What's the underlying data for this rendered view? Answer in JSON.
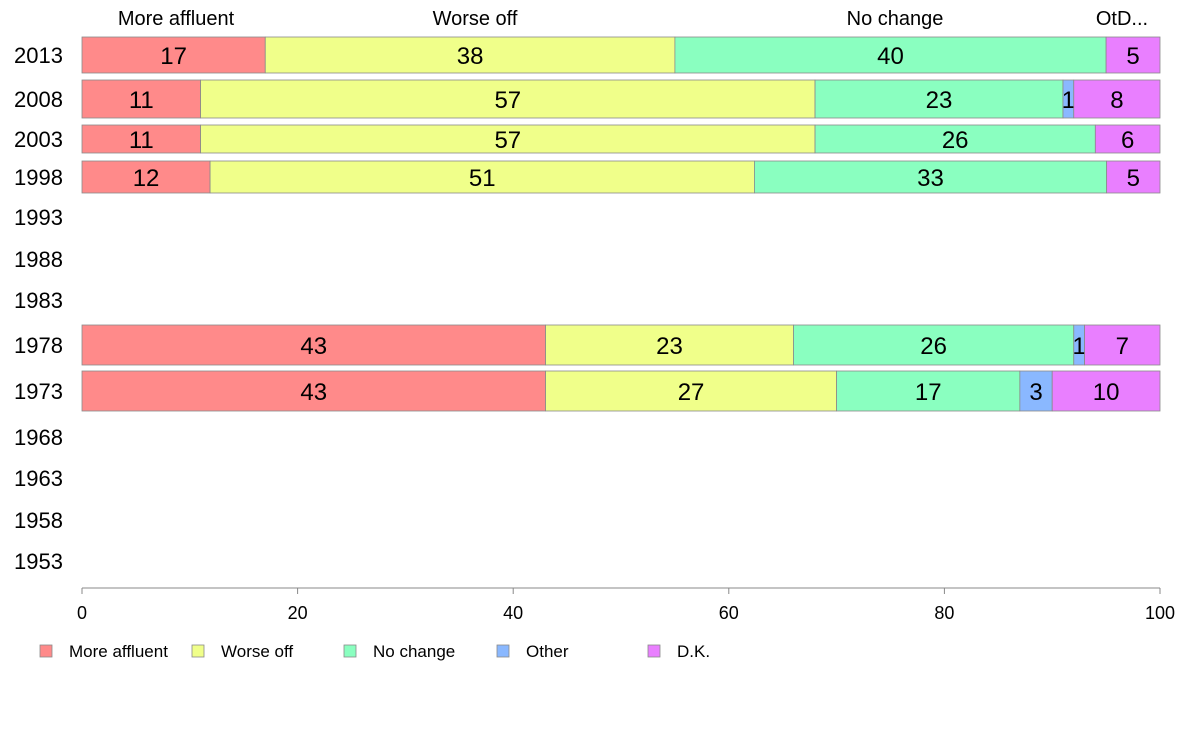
{
  "chart_data": {
    "type": "bar",
    "orientation": "horizontal",
    "stacked": true,
    "title": "",
    "xlabel": "",
    "ylabel": "",
    "xlim": [
      0,
      100
    ],
    "x_ticks": [
      "0",
      "20",
      "40",
      "60",
      "80",
      "100"
    ],
    "grid": false,
    "legend_position": "bottom",
    "top_header_labels": [
      "More affluent",
      "Worse off",
      "No change",
      "OtD..."
    ],
    "categories": [
      "2013",
      "2008",
      "2003",
      "1998",
      "1993",
      "1988",
      "1983",
      "1978",
      "1973",
      "1968",
      "1963",
      "1958",
      "1953"
    ],
    "series": [
      {
        "name": "More affluent",
        "color": "#ff8a8a",
        "values": [
          17,
          11,
          11,
          12,
          null,
          null,
          null,
          43,
          43,
          null,
          null,
          null,
          null
        ]
      },
      {
        "name": "Worse off",
        "color": "#f0ff8a",
        "values": [
          38,
          57,
          57,
          51,
          null,
          null,
          null,
          23,
          27,
          null,
          null,
          null,
          null
        ]
      },
      {
        "name": "No change",
        "color": "#8affc0",
        "values": [
          40,
          23,
          26,
          33,
          null,
          null,
          null,
          26,
          17,
          null,
          null,
          null,
          null
        ]
      },
      {
        "name": "Other",
        "color": "#8ab8ff",
        "values": [
          0,
          1,
          0,
          0,
          null,
          null,
          null,
          1,
          3,
          null,
          null,
          null,
          null
        ]
      },
      {
        "name": "D.K.",
        "color": "#e97fff",
        "values": [
          5,
          8,
          6,
          5,
          null,
          null,
          null,
          7,
          10,
          null,
          null,
          null,
          null
        ]
      }
    ]
  }
}
